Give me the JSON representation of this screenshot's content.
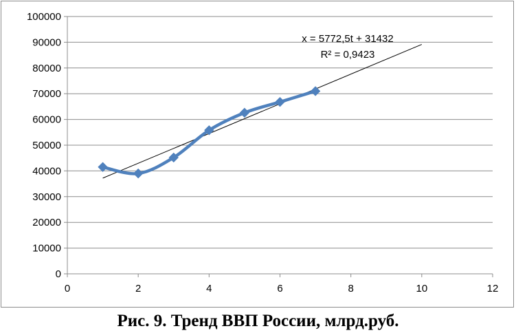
{
  "caption": "Рис. 9. Тренд ВВП России, млрд.руб.",
  "chart_data": {
    "type": "scatter",
    "title": "",
    "xlabel": "",
    "ylabel": "",
    "xlim": [
      0,
      12
    ],
    "ylim": [
      0,
      100000
    ],
    "x_ticks": [
      0,
      2,
      4,
      6,
      8,
      10,
      12
    ],
    "y_ticks": [
      0,
      10000,
      20000,
      30000,
      40000,
      50000,
      60000,
      70000,
      80000,
      90000,
      100000
    ],
    "x_tick_labels": [
      "0",
      "2",
      "4",
      "6",
      "8",
      "10",
      "12"
    ],
    "y_tick_labels": [
      "0",
      "10000",
      "20000",
      "30000",
      "40000",
      "50000",
      "60000",
      "70000",
      "80000",
      "90000",
      "100000"
    ],
    "grid": "horizontal",
    "series": [
      {
        "style": "smoothed line with diamond markers",
        "color": "#4f81bd",
        "x": [
          1,
          2,
          3,
          4,
          5,
          6,
          7
        ],
        "y": [
          41500,
          39000,
          45200,
          55800,
          62600,
          66800,
          71000
        ]
      }
    ],
    "trendline": {
      "type": "linear",
      "color": "#000000",
      "slope": 5772.5,
      "intercept": 31432,
      "x_range": [
        1,
        10
      ],
      "equation_label": "x = 5772,5t + 31432",
      "r2_label": "R² = 0,9423"
    }
  }
}
